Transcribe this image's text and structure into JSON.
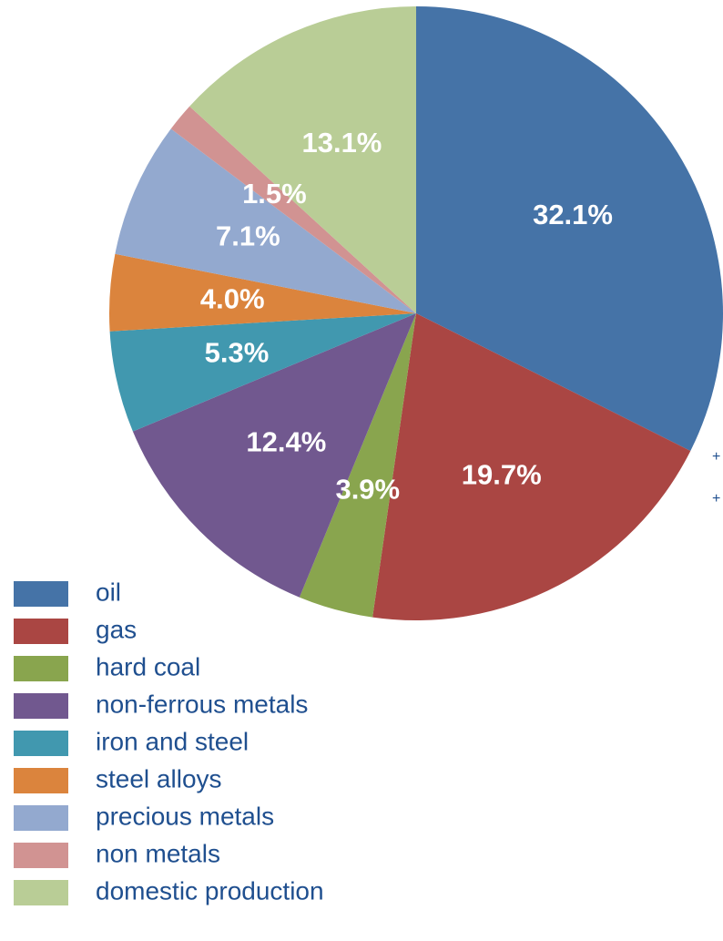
{
  "chart_data": {
    "type": "pie",
    "categories": [
      "oil",
      "gas",
      "hard coal",
      "non-ferrous metals",
      "iron and steel",
      "steel alloys",
      "precious metals",
      "non metals",
      "domestic production"
    ],
    "values": [
      32.1,
      19.7,
      3.9,
      12.4,
      5.3,
      4.0,
      7.1,
      1.5,
      13.1
    ],
    "value_labels": [
      "32.1%",
      "19.7%",
      "3.9%",
      "12.4%",
      "5.3%",
      "4.0%",
      "7.1%",
      "1.5%",
      "13.1%"
    ],
    "colors": [
      "#4573a7",
      "#aa4643",
      "#89a54e",
      "#71588f",
      "#4198af",
      "#db843d",
      "#93a9cf",
      "#d19392",
      "#b9cd96"
    ],
    "annotations": [
      "+",
      "+"
    ]
  }
}
